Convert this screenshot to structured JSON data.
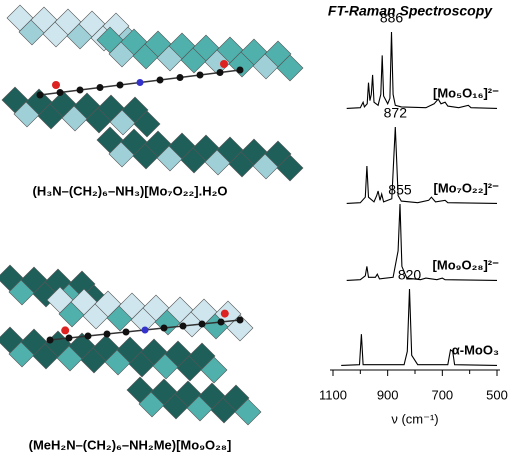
{
  "figure": {
    "captions": [
      "(H₃N–(CH₂)₆–NH₃)[Mo₇O₂₂].H₂O",
      "(MeH₂N–(CH₂)₆–NH₂Me)[Mo₉O₂₈]"
    ]
  },
  "chart_data": {
    "type": "line",
    "title": "FT-Raman Spectroscopy",
    "xlabel": "ν (cm⁻¹)",
    "xlim": [
      1100,
      500
    ],
    "xticks": [
      1100,
      900,
      700,
      500
    ],
    "xminorticks": [
      1000,
      800,
      600
    ],
    "ylim": [
      0,
      100
    ],
    "series": [
      {
        "name": "[Mo₅O₁₆]²⁻",
        "color": "#000000",
        "peak": 886,
        "x": [
          1050,
          1000,
          990,
          985,
          975,
          970,
          965,
          960,
          955,
          950,
          935,
          925,
          920,
          915,
          900,
          892,
          886,
          880,
          872,
          850,
          760,
          730,
          715,
          705,
          690,
          680,
          640,
          605,
          595,
          500
        ],
        "values": [
          2,
          3,
          10,
          4,
          8,
          35,
          12,
          20,
          45,
          10,
          6,
          20,
          70,
          18,
          8,
          15,
          100,
          20,
          6,
          4,
          3,
          8,
          14,
          8,
          10,
          5,
          3,
          6,
          3,
          2
        ]
      },
      {
        "name": "[Mo₇O₂₂]²⁻",
        "color": "#000000",
        "peak": 872,
        "x": [
          1050,
          1000,
          982,
          976,
          970,
          950,
          940,
          935,
          928,
          922,
          915,
          885,
          872,
          862,
          850,
          790,
          750,
          740,
          725,
          690,
          680,
          500
        ],
        "values": [
          2,
          3,
          10,
          50,
          10,
          4,
          12,
          18,
          6,
          14,
          4,
          8,
          100,
          12,
          5,
          3,
          6,
          10,
          4,
          6,
          3,
          2
        ]
      },
      {
        "name": "[Mo₉O₂₈]²⁻",
        "color": "#000000",
        "peak": 855,
        "x": [
          1050,
          1000,
          982,
          976,
          970,
          945,
          938,
          930,
          880,
          862,
          855,
          848,
          830,
          780,
          760,
          720,
          700,
          690,
          500
        ],
        "values": [
          2,
          3,
          8,
          20,
          6,
          6,
          10,
          4,
          6,
          40,
          100,
          20,
          5,
          3,
          5,
          3,
          5,
          3,
          2
        ]
      },
      {
        "name": "α-MoO₃",
        "color": "#000000",
        "peak": 820,
        "x": [
          1070,
          1003,
          996,
          990,
          840,
          828,
          820,
          812,
          790,
          680,
          670,
          662,
          655,
          500
        ],
        "values": [
          2,
          3,
          42,
          3,
          3,
          20,
          100,
          15,
          3,
          3,
          22,
          20,
          3,
          2
        ]
      }
    ]
  }
}
